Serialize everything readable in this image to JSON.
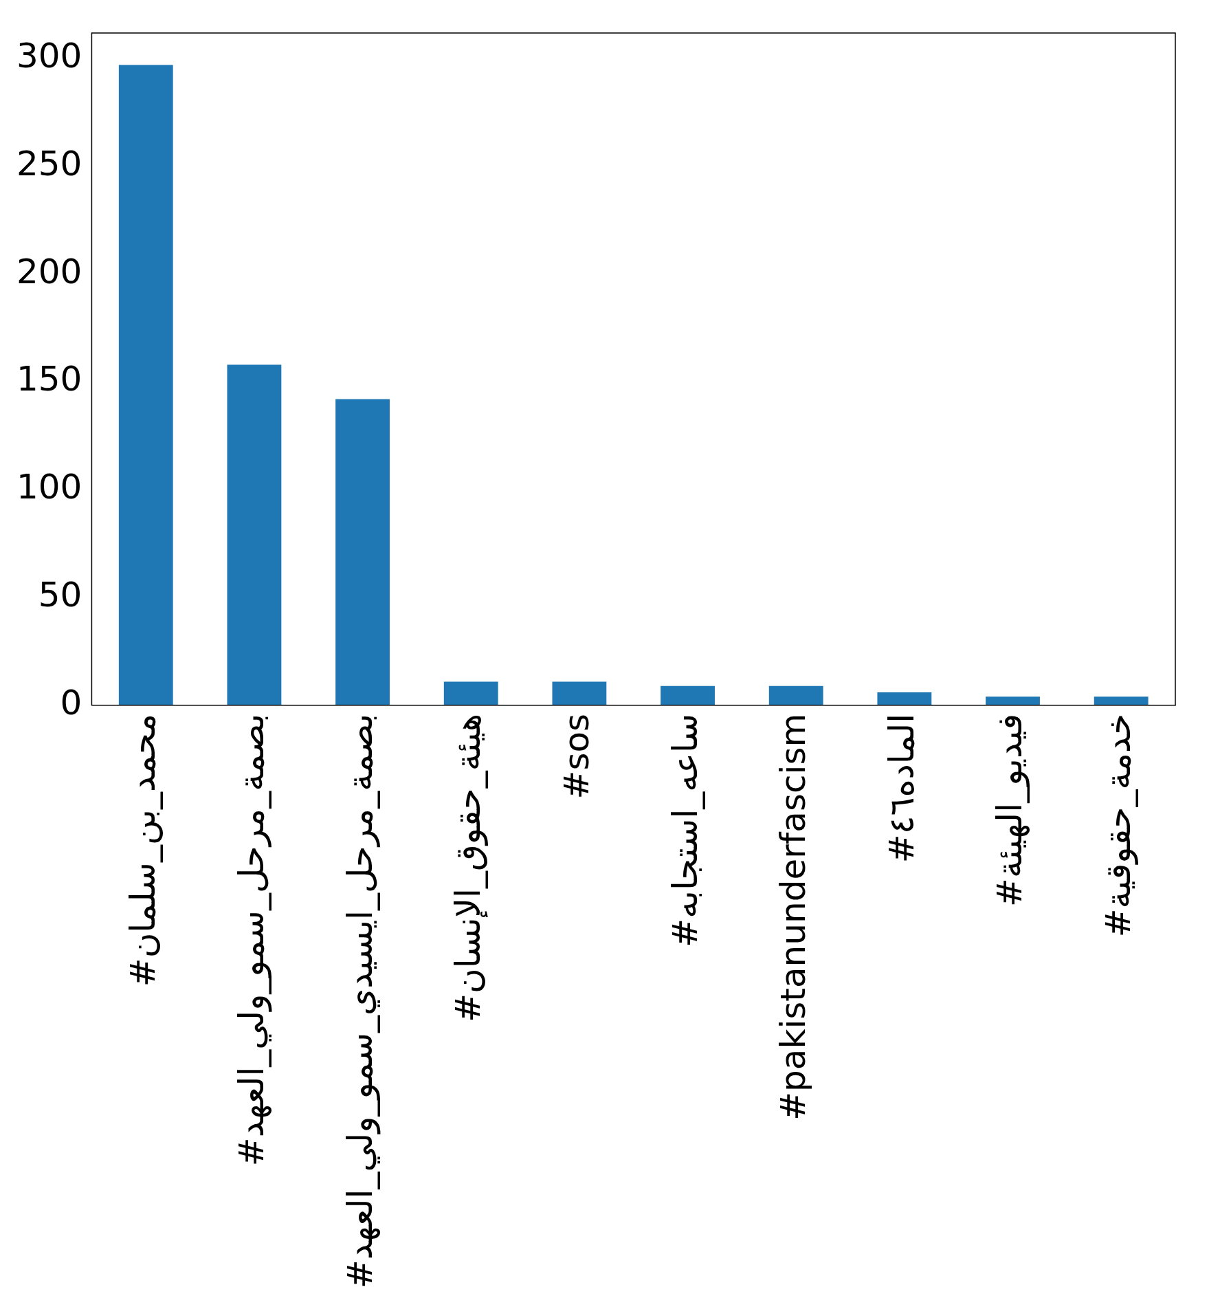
{
  "chart_data": {
    "type": "bar",
    "categories": [
      "#محمد_بن_سلمان",
      "#بصمة_مرحل_سمو_ولي_العهد",
      "#بصمة_مرحل_ايسيدي_سمو_ولي_العهد",
      "#هيئة_حقوق_الإنسان",
      "#sos",
      "#ساعه_استجابه",
      "#pakistanunderfascism",
      "#الماده٤٦",
      "#فيديو_الهيئة",
      "#خدمة_حقوقية"
    ],
    "values": [
      297,
      158,
      142,
      11,
      11,
      9,
      9,
      6,
      4,
      4
    ],
    "color": "#1f77b4",
    "ylim": [
      0,
      311.85
    ],
    "yticks": [
      0,
      50,
      100,
      150,
      200,
      250,
      300
    ]
  }
}
